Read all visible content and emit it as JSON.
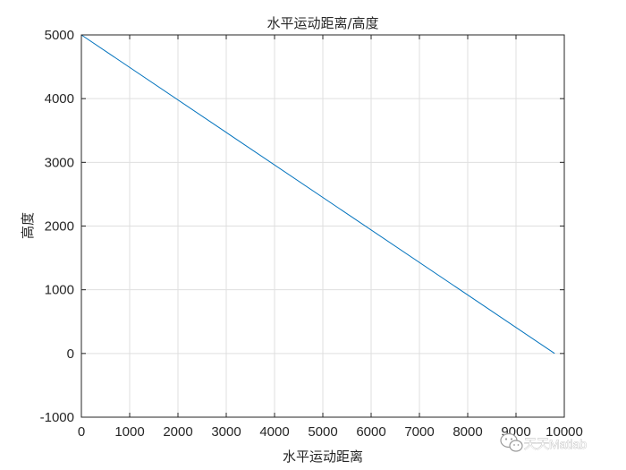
{
  "chart_data": {
    "type": "line",
    "title": "水平运动距离/高度",
    "xlabel": "水平运动距离",
    "ylabel": "高度",
    "xlim": [
      0,
      10000
    ],
    "ylim": [
      -1000,
      5000
    ],
    "xticks": [
      0,
      1000,
      2000,
      3000,
      4000,
      5000,
      6000,
      7000,
      8000,
      9000,
      10000
    ],
    "yticks": [
      -1000,
      0,
      1000,
      2000,
      3000,
      4000,
      5000
    ],
    "grid": true,
    "series": [
      {
        "color": "#0072BD",
        "x": [
          0,
          9800
        ],
        "y": [
          5000,
          0
        ]
      }
    ]
  },
  "watermark": {
    "text": "天天Matlab",
    "icon": "wechat-icon"
  }
}
